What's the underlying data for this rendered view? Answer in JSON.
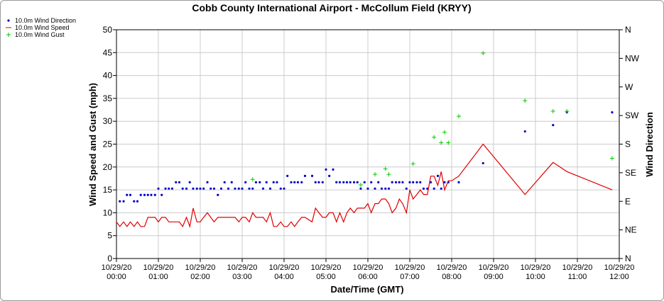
{
  "chart_data": {
    "type": "scatter",
    "title": "Cobb County International Airport - McCollum Field (KRYY)",
    "xlabel": "Date/Time (GMT)",
    "ylabel": "Wind Speed and Gust (mph)",
    "y2label": "Wind Direction",
    "xlim": [
      0,
      12
    ],
    "ylim": [
      0,
      50
    ],
    "y2lim": [
      0,
      360
    ],
    "grid": true,
    "legend_position": "top-left",
    "y_ticks": [
      "0",
      "5",
      "10",
      "15",
      "20",
      "25",
      "30",
      "35",
      "40",
      "45",
      "50"
    ],
    "y2_ticks": [
      {
        "value": 0,
        "label": "N"
      },
      {
        "value": 45,
        "label": "NE"
      },
      {
        "value": 90,
        "label": "E"
      },
      {
        "value": 135,
        "label": "SE"
      },
      {
        "value": 180,
        "label": "S"
      },
      {
        "value": 225,
        "label": "SW"
      },
      {
        "value": 270,
        "label": "W"
      },
      {
        "value": 315,
        "label": "NW"
      },
      {
        "value": 360,
        "label": "N"
      }
    ],
    "x_ticks": [
      {
        "date": "10/29/20",
        "time": "00:00"
      },
      {
        "date": "10/29/20",
        "time": "01:00"
      },
      {
        "date": "10/29/20",
        "time": "02:00"
      },
      {
        "date": "10/29/20",
        "time": "03:00"
      },
      {
        "date": "10/29/20",
        "time": "04:00"
      },
      {
        "date": "10/29/20",
        "time": "05:00"
      },
      {
        "date": "10/29/20",
        "time": "06:00"
      },
      {
        "date": "10/29/20",
        "time": "07:00"
      },
      {
        "date": "10/29/20",
        "time": "08:00"
      },
      {
        "date": "10/29/20",
        "time": "09:00"
      },
      {
        "date": "10/29/20",
        "time": "10:00"
      },
      {
        "date": "10/29/20",
        "time": "11:00"
      },
      {
        "date": "10/29/20",
        "time": "12:00"
      }
    ],
    "series": [
      {
        "name": "10.0m Wind Direction",
        "kind": "points",
        "axis": "right",
        "color": "#0000cc",
        "x": [
          0.08,
          0.17,
          0.25,
          0.33,
          0.42,
          0.5,
          0.58,
          0.67,
          0.75,
          0.83,
          0.92,
          1.0,
          1.08,
          1.17,
          1.25,
          1.33,
          1.42,
          1.5,
          1.58,
          1.67,
          1.75,
          1.83,
          1.92,
          2.0,
          2.08,
          2.17,
          2.25,
          2.33,
          2.42,
          2.5,
          2.58,
          2.67,
          2.75,
          2.83,
          2.92,
          3.0,
          3.08,
          3.17,
          3.25,
          3.33,
          3.42,
          3.5,
          3.58,
          3.67,
          3.75,
          3.83,
          3.92,
          4.0,
          4.08,
          4.17,
          4.25,
          4.33,
          4.42,
          4.5,
          4.67,
          4.75,
          4.83,
          4.92,
          5.0,
          5.08,
          5.17,
          5.25,
          5.33,
          5.42,
          5.5,
          5.58,
          5.67,
          5.75,
          5.83,
          5.92,
          6.0,
          6.08,
          6.17,
          6.25,
          6.33,
          6.42,
          6.5,
          6.58,
          6.67,
          6.75,
          6.83,
          6.92,
          7.0,
          7.08,
          7.17,
          7.25,
          7.33,
          7.42,
          7.5,
          7.58,
          7.67,
          7.75,
          7.83,
          7.92,
          8.17,
          8.75,
          9.75,
          10.42,
          10.75,
          11.83
        ],
        "y": [
          90,
          90,
          100,
          100,
          90,
          90,
          100,
          100,
          100,
          100,
          100,
          110,
          100,
          110,
          110,
          110,
          120,
          120,
          110,
          110,
          120,
          110,
          110,
          110,
          110,
          120,
          110,
          110,
          100,
          110,
          120,
          110,
          120,
          110,
          110,
          110,
          120,
          110,
          110,
          120,
          120,
          110,
          120,
          110,
          120,
          120,
          110,
          110,
          130,
          120,
          120,
          120,
          120,
          130,
          130,
          120,
          120,
          120,
          140,
          130,
          140,
          120,
          120,
          120,
          120,
          120,
          120,
          120,
          110,
          120,
          110,
          120,
          110,
          120,
          110,
          110,
          110,
          120,
          120,
          120,
          120,
          110,
          120,
          120,
          120,
          120,
          110,
          110,
          120,
          110,
          130,
          110,
          120,
          120,
          120,
          150,
          200,
          210,
          230,
          230
        ],
        "values": [
          12.5,
          12.5,
          13.9,
          13.9,
          12.5,
          12.5,
          13.9,
          13.9,
          13.9,
          13.9,
          13.9,
          15.3,
          13.9,
          15.3,
          15.3,
          15.3,
          16.7,
          16.7,
          15.3,
          15.3,
          16.7,
          15.3,
          15.3,
          15.3,
          15.3,
          16.7,
          15.3,
          15.3,
          13.9,
          15.3,
          16.7,
          15.3,
          16.7,
          15.3,
          15.3,
          15.3,
          16.7,
          15.3,
          15.3,
          16.7,
          16.7,
          15.3,
          16.7,
          15.3,
          16.7,
          16.7,
          15.3,
          15.3,
          18.1,
          16.7,
          16.7,
          16.7,
          16.7,
          18.1,
          18.1,
          16.7,
          16.7,
          16.7,
          19.4,
          18.1,
          19.4,
          16.7,
          16.7,
          16.7,
          16.7,
          16.7,
          16.7,
          16.7,
          15.3,
          16.7,
          15.3,
          16.7,
          15.3,
          16.7,
          15.3,
          15.3,
          15.3,
          16.7,
          16.7,
          16.7,
          16.7,
          15.3,
          16.7,
          16.7,
          16.7,
          16.7,
          15.3,
          15.3,
          16.7,
          15.3,
          18.1,
          15.3,
          16.7,
          16.7,
          16.7,
          20.8,
          27.8,
          29.2,
          31.9,
          31.9
        ]
      },
      {
        "name": "10.0m Wind Speed",
        "kind": "line",
        "axis": "left",
        "color": "#e00000",
        "x": [
          0,
          0.08,
          0.17,
          0.25,
          0.33,
          0.42,
          0.5,
          0.58,
          0.67,
          0.75,
          0.83,
          0.92,
          1.0,
          1.08,
          1.17,
          1.25,
          1.33,
          1.42,
          1.5,
          1.58,
          1.67,
          1.75,
          1.83,
          1.92,
          2.0,
          2.08,
          2.17,
          2.25,
          2.33,
          2.42,
          2.5,
          2.58,
          2.67,
          2.75,
          2.83,
          2.92,
          3.0,
          3.08,
          3.17,
          3.25,
          3.33,
          3.42,
          3.5,
          3.58,
          3.67,
          3.75,
          3.83,
          3.92,
          4.0,
          4.08,
          4.17,
          4.25,
          4.33,
          4.42,
          4.5,
          4.67,
          4.75,
          4.83,
          4.92,
          5.0,
          5.08,
          5.17,
          5.25,
          5.33,
          5.42,
          5.5,
          5.58,
          5.67,
          5.75,
          5.83,
          5.92,
          6.0,
          6.08,
          6.17,
          6.25,
          6.33,
          6.42,
          6.5,
          6.58,
          6.67,
          6.75,
          6.83,
          6.92,
          7.0,
          7.08,
          7.17,
          7.25,
          7.33,
          7.42,
          7.5,
          7.58,
          7.67,
          7.75,
          7.83,
          7.92,
          8.0,
          8.17,
          8.75,
          9.75,
          10.42,
          10.75,
          11.83
        ],
        "y": [
          8,
          7,
          8,
          7,
          8,
          7,
          8,
          7,
          7,
          9,
          9,
          9,
          8,
          9,
          9,
          8,
          8,
          8,
          8,
          7,
          9,
          7,
          11,
          8,
          8,
          9,
          10,
          9,
          8,
          9,
          9,
          9,
          9,
          9,
          9,
          8,
          9,
          9,
          8,
          10,
          9,
          9,
          9,
          8,
          10,
          7,
          7,
          8,
          7,
          7,
          8,
          7,
          8,
          9,
          9,
          8,
          11,
          10,
          9,
          9,
          10,
          10,
          8,
          10,
          8,
          10,
          11,
          10,
          11,
          11,
          11,
          12,
          10,
          12,
          12,
          13,
          13,
          12,
          10,
          11,
          13,
          12,
          10,
          15,
          13,
          14,
          15,
          14,
          14,
          18,
          18,
          16,
          19,
          15,
          17,
          17,
          18,
          25,
          14,
          21,
          19,
          15
        ]
      },
      {
        "name": "10.0m Wind Gust",
        "kind": "points",
        "axis": "left",
        "color": "#00cc00",
        "x": [
          3.25,
          5.83,
          6.17,
          6.42,
          6.5,
          7.08,
          7.58,
          7.75,
          7.83,
          7.92,
          8.17,
          8.75,
          9.75,
          10.42,
          10.75,
          11.83
        ],
        "y": [
          17.3,
          16.1,
          18.4,
          19.6,
          18.4,
          20.7,
          26.5,
          25.3,
          27.6,
          25.3,
          31.1,
          44.9,
          34.5,
          32.2,
          32.2,
          21.9
        ]
      }
    ]
  }
}
